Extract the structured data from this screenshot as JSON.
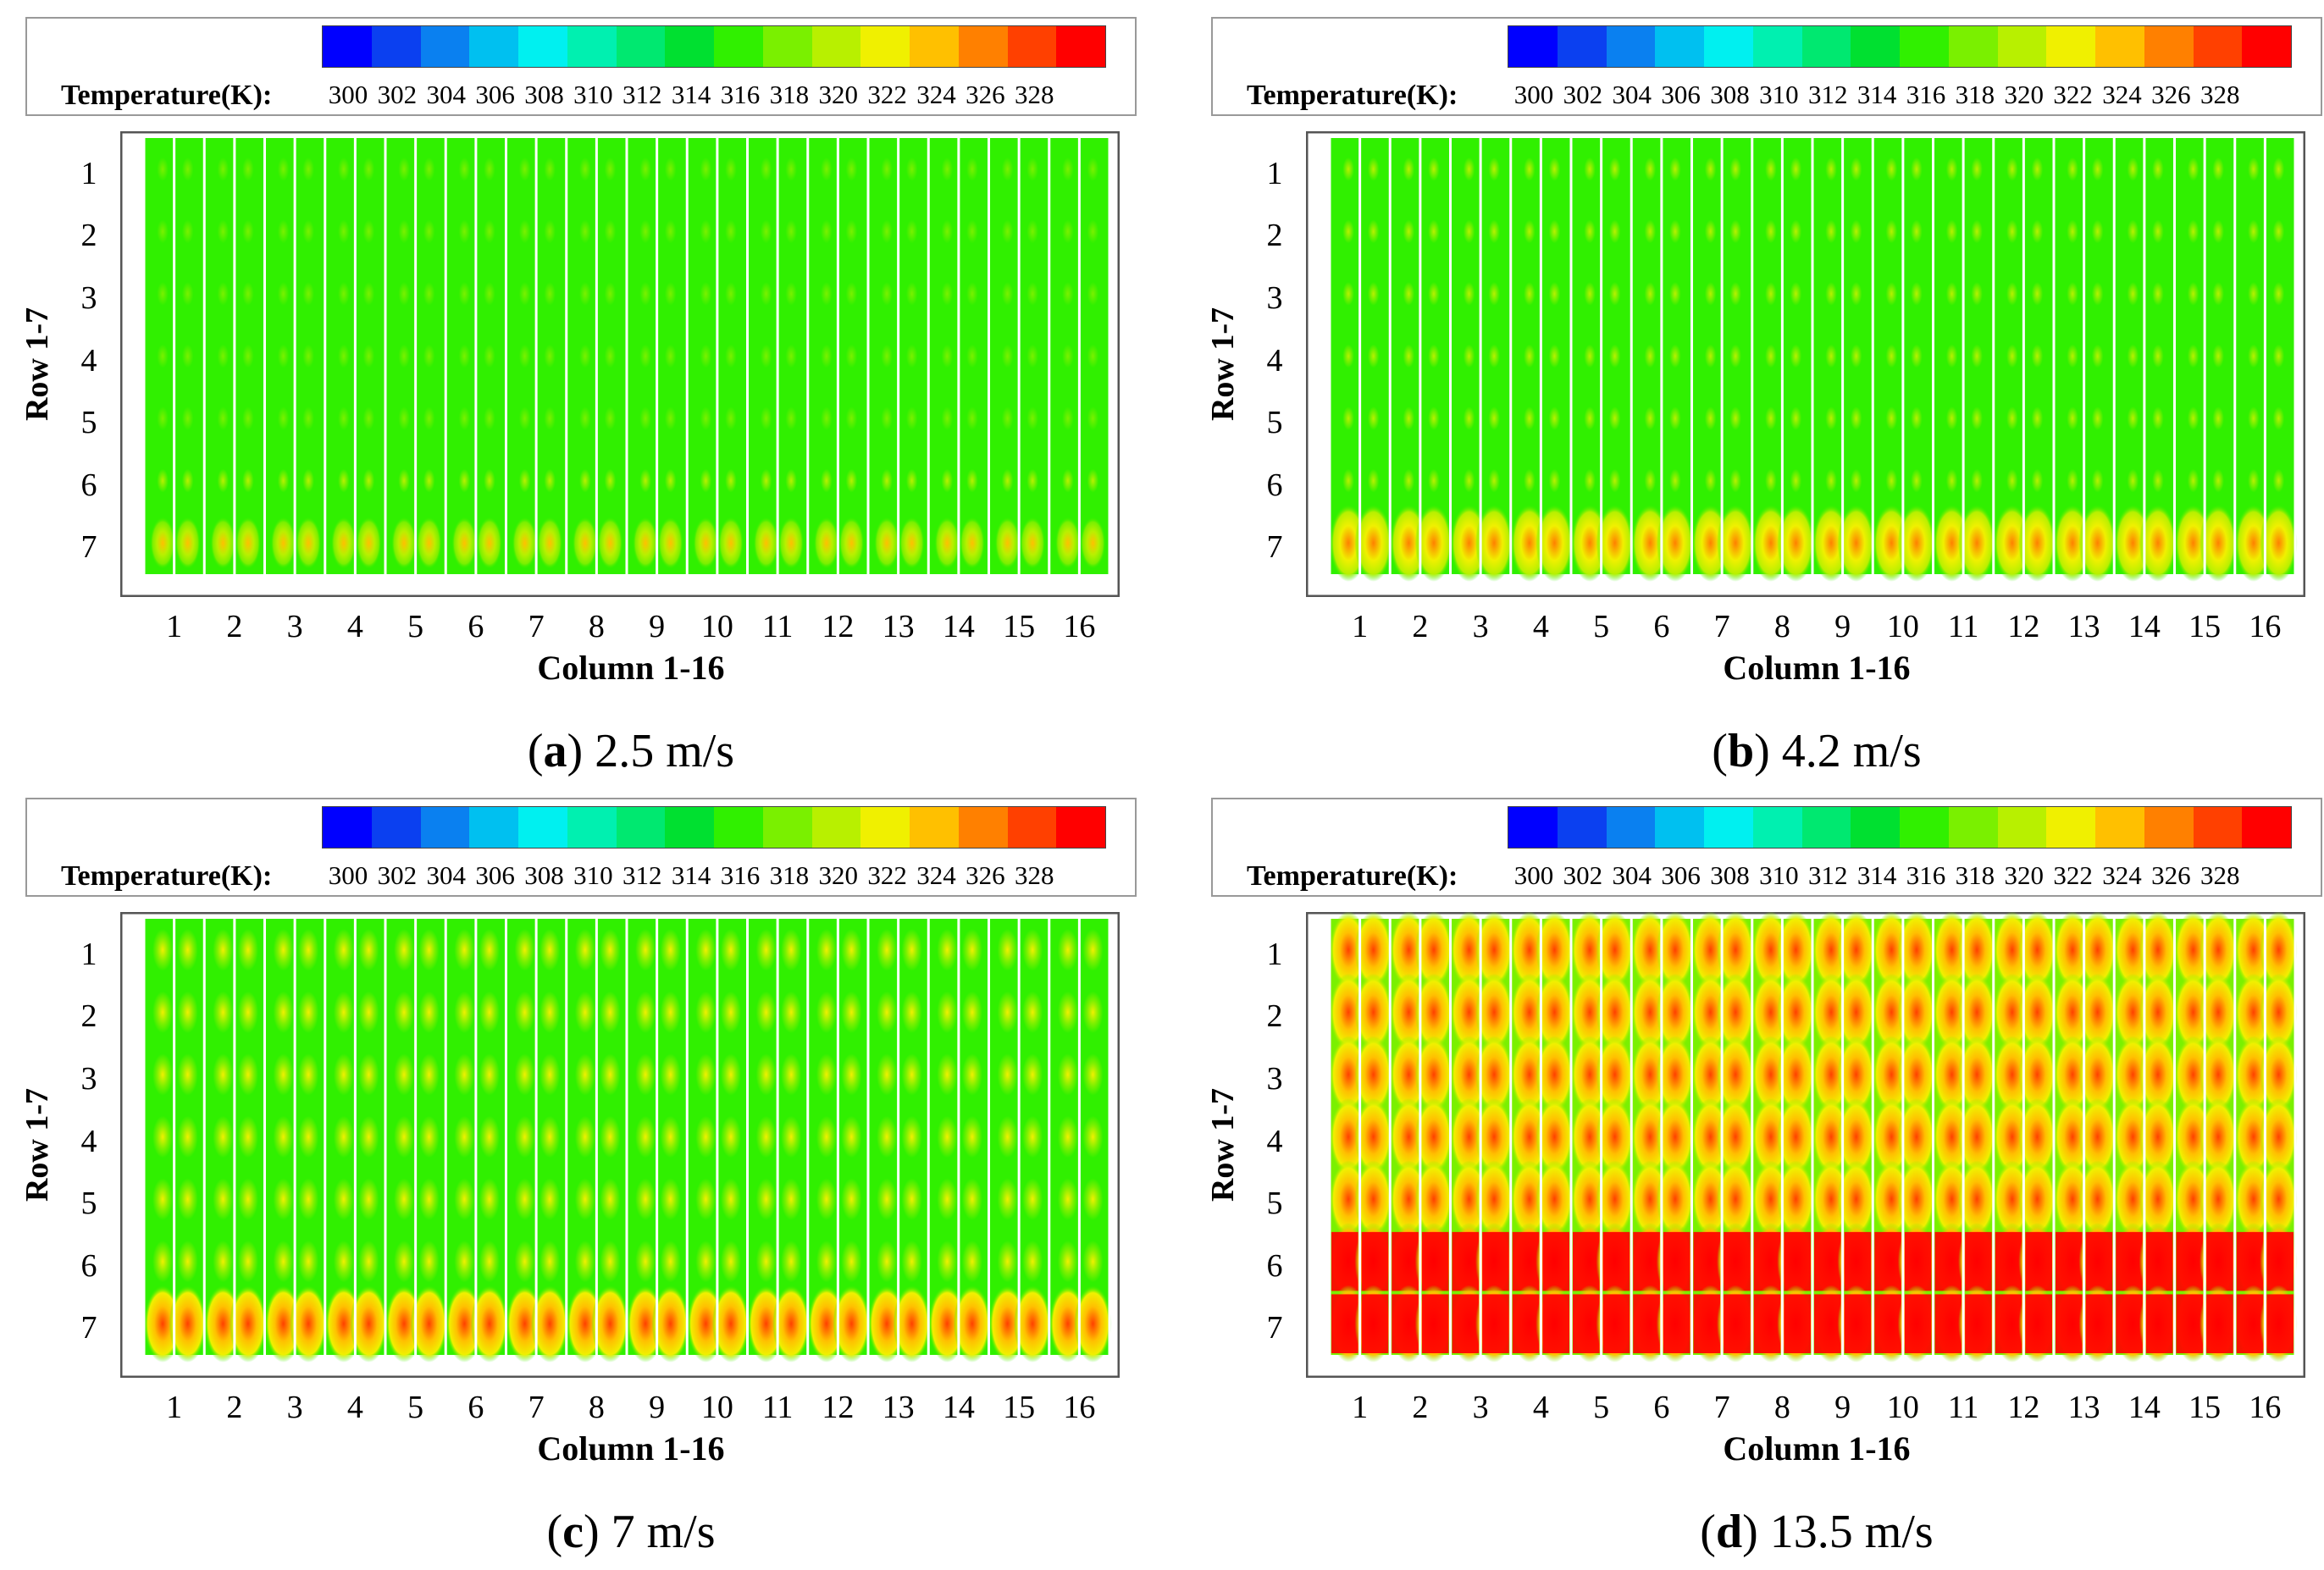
{
  "chart_data": [
    {
      "type": "heatmap",
      "panel_letter": "a",
      "title_suffix": "2.5 m/s",
      "xlabel": "Column 1-16",
      "ylabel": "Row 1-7",
      "xticks": [
        "1",
        "2",
        "3",
        "4",
        "5",
        "6",
        "7",
        "8",
        "9",
        "10",
        "11",
        "12",
        "13",
        "14",
        "15",
        "16"
      ],
      "yticks": [
        "1",
        "2",
        "3",
        "4",
        "5",
        "6",
        "7"
      ],
      "colorbar_label": "Temperature(K):",
      "colorbar_ticks": [
        "300",
        "302",
        "304",
        "306",
        "308",
        "310",
        "312",
        "314",
        "316",
        "318",
        "320",
        "322",
        "324",
        "326",
        "328"
      ],
      "colorbar_range": [
        300,
        330
      ],
      "peak_temperature_by_row": [
        318,
        318,
        318,
        318,
        318,
        320,
        324
      ],
      "base_temperature": 316
    },
    {
      "type": "heatmap",
      "panel_letter": "b",
      "title_suffix": "4.2 m/s",
      "xlabel": "Column 1-16",
      "ylabel": "Row 1-7",
      "xticks": [
        "1",
        "2",
        "3",
        "4",
        "5",
        "6",
        "7",
        "8",
        "9",
        "10",
        "11",
        "12",
        "13",
        "14",
        "15",
        "16"
      ],
      "yticks": [
        "1",
        "2",
        "3",
        "4",
        "5",
        "6",
        "7"
      ],
      "colorbar_label": "Temperature(K):",
      "colorbar_ticks": [
        "300",
        "302",
        "304",
        "306",
        "308",
        "310",
        "312",
        "314",
        "316",
        "318",
        "320",
        "322",
        "324",
        "326",
        "328"
      ],
      "colorbar_range": [
        300,
        330
      ],
      "peak_temperature_by_row": [
        320,
        320,
        320,
        320,
        320,
        320,
        326
      ],
      "base_temperature": 316
    },
    {
      "type": "heatmap",
      "panel_letter": "c",
      "title_suffix": "7 m/s",
      "xlabel": "Column 1-16",
      "ylabel": "Row 1-7",
      "xticks": [
        "1",
        "2",
        "3",
        "4",
        "5",
        "6",
        "7",
        "8",
        "9",
        "10",
        "11",
        "12",
        "13",
        "14",
        "15",
        "16"
      ],
      "yticks": [
        "1",
        "2",
        "3",
        "4",
        "5",
        "6",
        "7"
      ],
      "colorbar_label": "Temperature(K):",
      "colorbar_ticks": [
        "300",
        "302",
        "304",
        "306",
        "308",
        "310",
        "312",
        "314",
        "316",
        "318",
        "320",
        "322",
        "324",
        "326",
        "328"
      ],
      "colorbar_range": [
        300,
        330
      ],
      "peak_temperature_by_row": [
        322,
        322,
        322,
        322,
        322,
        322,
        328
      ],
      "base_temperature": 316
    },
    {
      "type": "heatmap",
      "panel_letter": "d",
      "title_suffix": "13.5 m/s",
      "xlabel": "Column 1-16",
      "ylabel": "Row 1-7",
      "xticks": [
        "1",
        "2",
        "3",
        "4",
        "5",
        "6",
        "7",
        "8",
        "9",
        "10",
        "11",
        "12",
        "13",
        "14",
        "15",
        "16"
      ],
      "yticks": [
        "1",
        "2",
        "3",
        "4",
        "5",
        "6",
        "7"
      ],
      "colorbar_label": "Temperature(K):",
      "colorbar_ticks": [
        "300",
        "302",
        "304",
        "306",
        "308",
        "310",
        "312",
        "314",
        "316",
        "318",
        "320",
        "322",
        "324",
        "326",
        "328"
      ],
      "colorbar_range": [
        300,
        330
      ],
      "peak_temperature_by_row": [
        328,
        328,
        328,
        328,
        328,
        330,
        330
      ],
      "base_temperature": 318
    }
  ],
  "colors": {
    "colormap": [
      "#0000ff",
      "#0b40f0",
      "#0a80f0",
      "#00c0f0",
      "#00f0f0",
      "#00f0b0",
      "#00e870",
      "#00e030",
      "#30f000",
      "#7af000",
      "#b8f000",
      "#f0f000",
      "#ffc000",
      "#ff8000",
      "#ff4000",
      "#ff0000"
    ],
    "frame": "#555555"
  }
}
